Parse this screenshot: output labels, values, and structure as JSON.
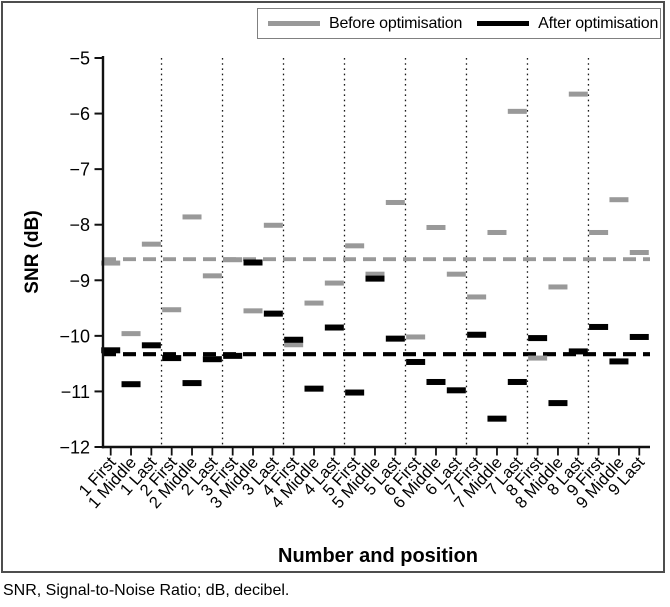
{
  "figure": {
    "footnote": "SNR, Signal-to-Noise Ratio; dB, decibel."
  },
  "legend": {
    "position": "top-right",
    "items": [
      {
        "label": "Before optimisation",
        "color": "#999999"
      },
      {
        "label": "After optimisation",
        "color": "#000000"
      }
    ]
  },
  "chart_data": {
    "type": "scatter",
    "marker_style": "horizontal-dash-markers",
    "xlabel": "Number and position",
    "ylabel": "SNR (dB)",
    "ylim": [
      -12,
      -5
    ],
    "yticks": [
      -5,
      -6,
      -7,
      -8,
      -9,
      -10,
      -11,
      -12
    ],
    "grid": "off",
    "categories": [
      "1 First",
      "1 Middle",
      "1 Last",
      "2 First",
      "2 Middle",
      "2 Last",
      "3 First",
      "3 Middle",
      "3 Last",
      "4 First",
      "4 Middle",
      "4 Last",
      "5 First",
      "5 Middle",
      "5 Last",
      "6 First",
      "6 Middle",
      "6 Last",
      "7 First",
      "7 Middle",
      "7 Last",
      "8 First",
      "8 Middle",
      "8 Last",
      "9 First",
      "9 Middle",
      "9 Last"
    ],
    "series": [
      {
        "name": "Before optimisation",
        "color": "#999999",
        "values": [
          -8.69,
          -9.96,
          -8.35,
          -9.53,
          -7.86,
          -8.92,
          -8.63,
          -9.55,
          -8.01,
          -10.16,
          -9.41,
          -9.05,
          -8.38,
          -8.89,
          -7.6,
          -10.02,
          -8.05,
          -8.89,
          -9.3,
          -8.14,
          -5.96,
          -10.4,
          -9.12,
          -5.65,
          -8.14,
          -7.55,
          -8.5
        ]
      },
      {
        "name": "After optimisation",
        "color": "#000000",
        "values": [
          -10.26,
          -10.87,
          -10.17,
          -10.4,
          -10.85,
          -10.42,
          -10.36,
          -8.68,
          -9.6,
          -10.07,
          -10.95,
          -9.85,
          -11.02,
          -8.97,
          -10.05,
          -10.47,
          -10.83,
          -10.98,
          -9.98,
          -11.49,
          -10.83,
          -10.04,
          -11.21,
          -10.28,
          -9.84,
          -10.46,
          -10.02
        ]
      }
    ],
    "mean_lines": [
      {
        "name": "Before optimisation mean",
        "value": -8.62,
        "color": "#999999",
        "style": "dashed"
      },
      {
        "name": "After optimisation mean",
        "value": -10.33,
        "color": "#000000",
        "style": "dashed"
      }
    ],
    "group_separators_after": [
      "1 Last",
      "2 Last",
      "3 Last",
      "4 Last",
      "5 Last",
      "6 Last",
      "7 Last",
      "8 Last"
    ]
  }
}
